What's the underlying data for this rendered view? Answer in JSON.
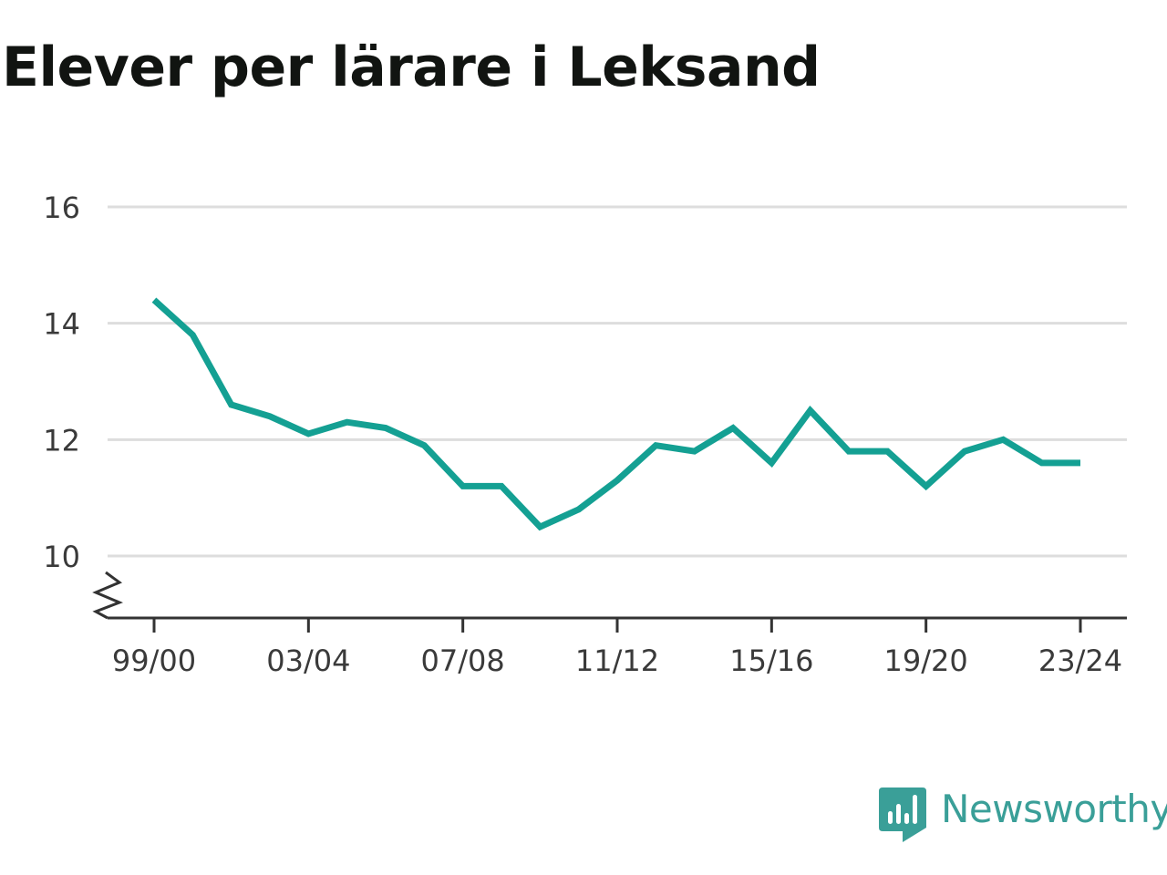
{
  "title": "Elever per lärare i Leksand",
  "brand": {
    "name": "Newsworthy",
    "icon": "newsworthy-bar-chart-icon"
  },
  "colors": {
    "line": "#14a093",
    "grid": "#dddddd",
    "axis": "#333333",
    "text": "#3a3a3a",
    "brand": "#3a9f98"
  },
  "chart_data": {
    "type": "line",
    "title": "Elever per lärare i Leksand",
    "x": [
      "99/00",
      "00/01",
      "01/02",
      "02/03",
      "03/04",
      "04/05",
      "05/06",
      "06/07",
      "07/08",
      "08/09",
      "09/10",
      "10/11",
      "11/12",
      "12/13",
      "13/14",
      "14/15",
      "15/16",
      "16/17",
      "17/18",
      "18/19",
      "19/20",
      "20/21",
      "21/22",
      "22/23",
      "23/24"
    ],
    "series": [
      {
        "values": [
          14.4,
          13.8,
          12.6,
          12.4,
          12.1,
          12.3,
          12.2,
          11.9,
          11.2,
          11.2,
          10.5,
          10.8,
          11.3,
          11.9,
          11.8,
          12.2,
          11.6,
          12.5,
          11.8,
          11.8,
          11.2,
          11.8,
          12.0,
          11.6,
          11.6
        ]
      }
    ],
    "xticks": [
      "99/00",
      "03/04",
      "07/08",
      "11/12",
      "15/16",
      "19/20",
      "23/24"
    ],
    "yticks": [
      10,
      12,
      14,
      16
    ],
    "ylim": [
      9,
      16
    ],
    "axis_break": true,
    "grid": true
  }
}
